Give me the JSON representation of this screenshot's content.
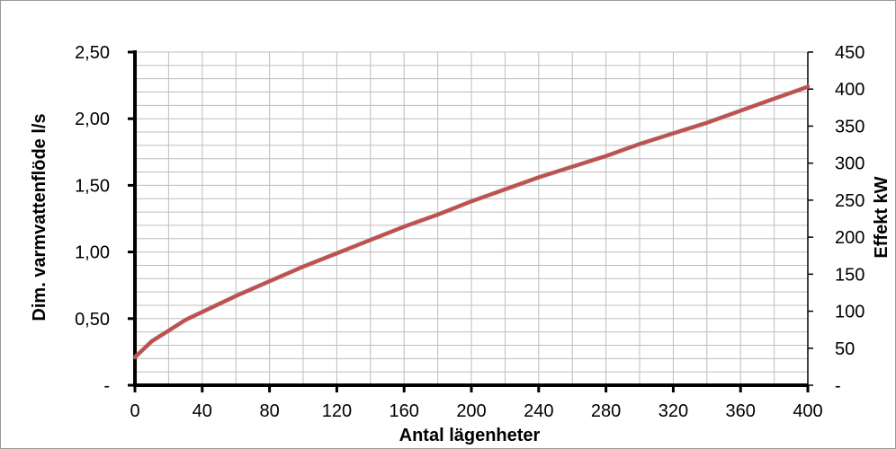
{
  "chart_data": {
    "type": "line",
    "xlabel": "Antal lägenheter",
    "ylabel": "Dim. varmvattenflöde l/s",
    "y2label": "Effekt kW",
    "xlim": [
      0,
      400
    ],
    "ylim": [
      0,
      2.5
    ],
    "y2lim": [
      0,
      450
    ],
    "x_ticks": [
      "0",
      "40",
      "80",
      "120",
      "160",
      "200",
      "240",
      "280",
      "320",
      "360",
      "400"
    ],
    "y_ticks": [
      "-",
      "0,50",
      "1,00",
      "1,50",
      "2,00",
      "2,50"
    ],
    "y2_ticks": [
      "-",
      "50",
      "100",
      "150",
      "200",
      "250",
      "300",
      "350",
      "400",
      "450"
    ],
    "grid": true,
    "color": "#c0504d",
    "series": [
      {
        "x": [
          0,
          5,
          10,
          20,
          30,
          40,
          60,
          80,
          100,
          120,
          140,
          160,
          180,
          200,
          220,
          240,
          260,
          280,
          300,
          320,
          340,
          360,
          380,
          400
        ],
        "y": [
          0.21,
          0.27,
          0.33,
          0.41,
          0.49,
          0.55,
          0.67,
          0.78,
          0.89,
          0.99,
          1.09,
          1.19,
          1.28,
          1.38,
          1.47,
          1.56,
          1.64,
          1.72,
          1.81,
          1.89,
          1.97,
          2.06,
          2.15,
          2.24
        ]
      }
    ]
  }
}
